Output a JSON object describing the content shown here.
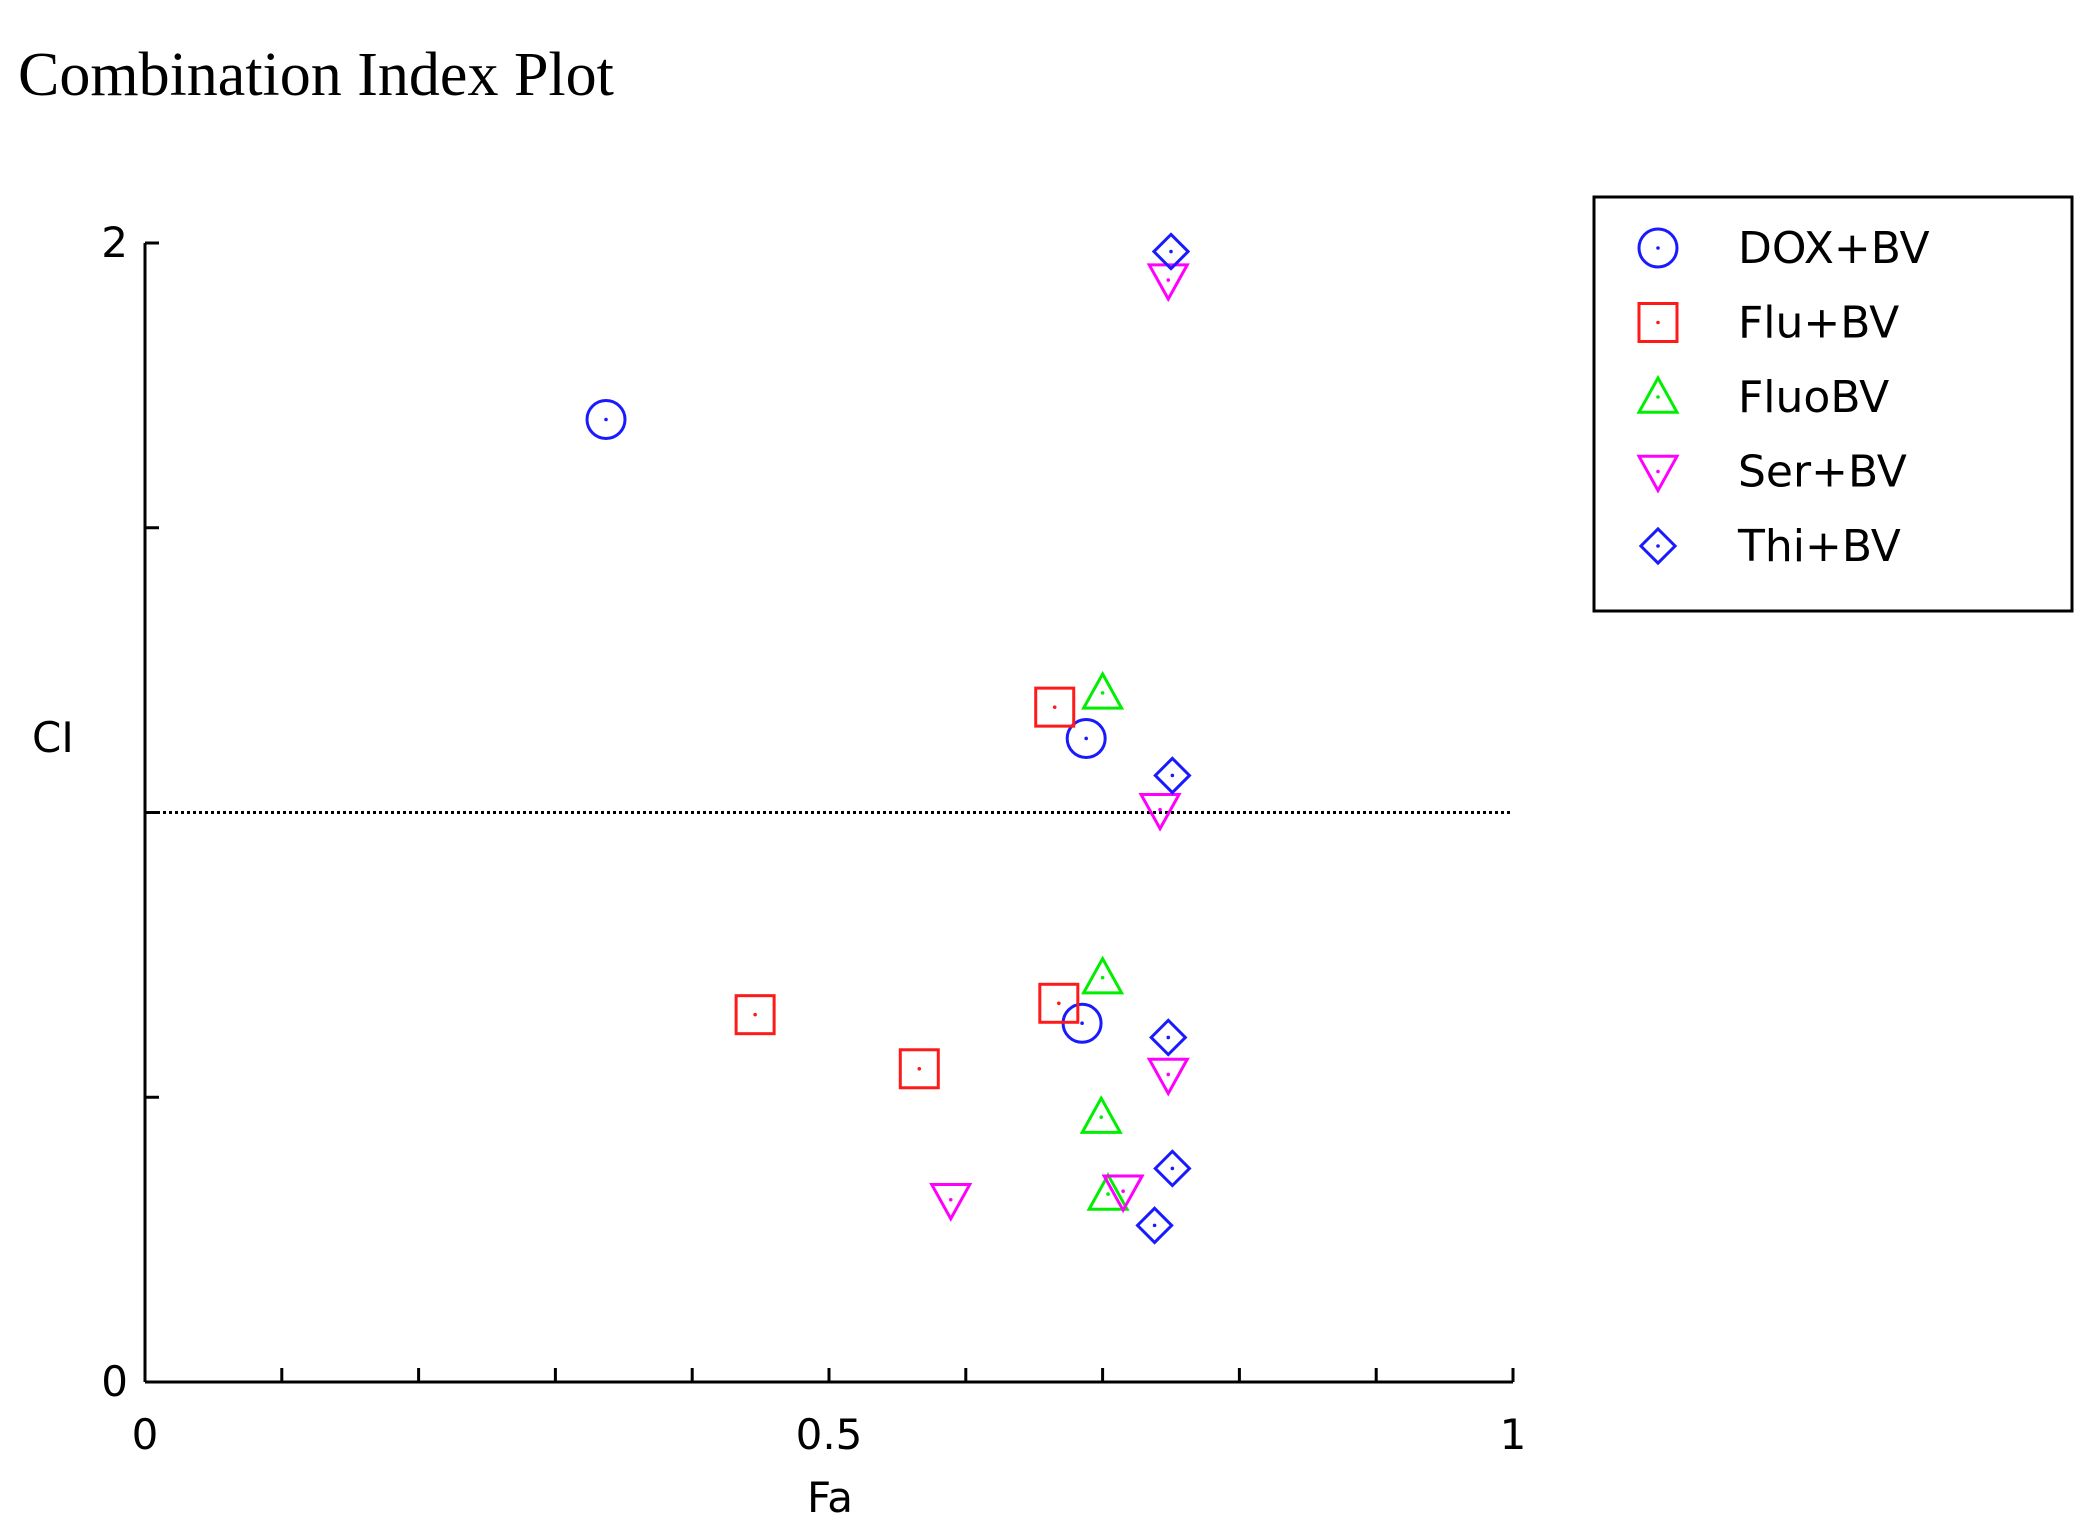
{
  "chart_data": {
    "type": "scatter",
    "title": "Combination Index Plot",
    "xlabel": "Fa",
    "ylabel": "CI",
    "xlim": [
      0,
      1
    ],
    "ylim": [
      0,
      2
    ],
    "x_ticks": [
      0,
      0.1,
      0.2,
      0.3,
      0.4,
      0.5,
      0.6,
      0.7,
      0.8,
      0.9,
      1
    ],
    "x_tick_labels": [
      {
        "value": 0,
        "label": "0"
      },
      {
        "value": 0.5,
        "label": "0.5"
      },
      {
        "value": 1,
        "label": "1"
      }
    ],
    "y_ticks": [
      0,
      0.5,
      1,
      1.5,
      2
    ],
    "y_tick_labels": [
      {
        "value": 0,
        "label": "0"
      },
      {
        "value": 2,
        "label": "2"
      }
    ],
    "reference_line": {
      "y": 1,
      "style": "dotted"
    },
    "grid": false,
    "legend_position": "top-right, outside plot",
    "series": [
      {
        "name": "DOX+BV",
        "marker": "circle",
        "color": "#1a1aff",
        "points": [
          {
            "x": 0.337,
            "y": 1.69
          },
          {
            "x": 0.688,
            "y": 1.13
          },
          {
            "x": 0.685,
            "y": 0.63
          }
        ]
      },
      {
        "name": "Flu+BV",
        "marker": "square",
        "color": "#ff1a1a",
        "points": [
          {
            "x": 0.665,
            "y": 1.185
          },
          {
            "x": 0.668,
            "y": 0.665
          },
          {
            "x": 0.446,
            "y": 0.645
          },
          {
            "x": 0.566,
            "y": 0.55
          }
        ]
      },
      {
        "name": "FluoBV",
        "marker": "triangle-up",
        "color": "#00ee00",
        "points": [
          {
            "x": 0.7,
            "y": 1.21
          },
          {
            "x": 0.7,
            "y": 0.71
          },
          {
            "x": 0.699,
            "y": 0.465
          },
          {
            "x": 0.704,
            "y": 0.33
          }
        ]
      },
      {
        "name": "Ser+BV",
        "marker": "triangle-down",
        "color": "#ff00ff",
        "points": [
          {
            "x": 0.748,
            "y": 1.935
          },
          {
            "x": 0.742,
            "y": 1.005
          },
          {
            "x": 0.748,
            "y": 0.54
          },
          {
            "x": 0.589,
            "y": 0.32
          },
          {
            "x": 0.715,
            "y": 0.335
          }
        ]
      },
      {
        "name": "Thi+BV",
        "marker": "diamond",
        "color": "#1a1aff",
        "points": [
          {
            "x": 0.75,
            "y": 1.985
          },
          {
            "x": 0.751,
            "y": 1.065
          },
          {
            "x": 0.748,
            "y": 0.605
          },
          {
            "x": 0.751,
            "y": 0.375
          },
          {
            "x": 0.738,
            "y": 0.275
          }
        ]
      }
    ]
  }
}
